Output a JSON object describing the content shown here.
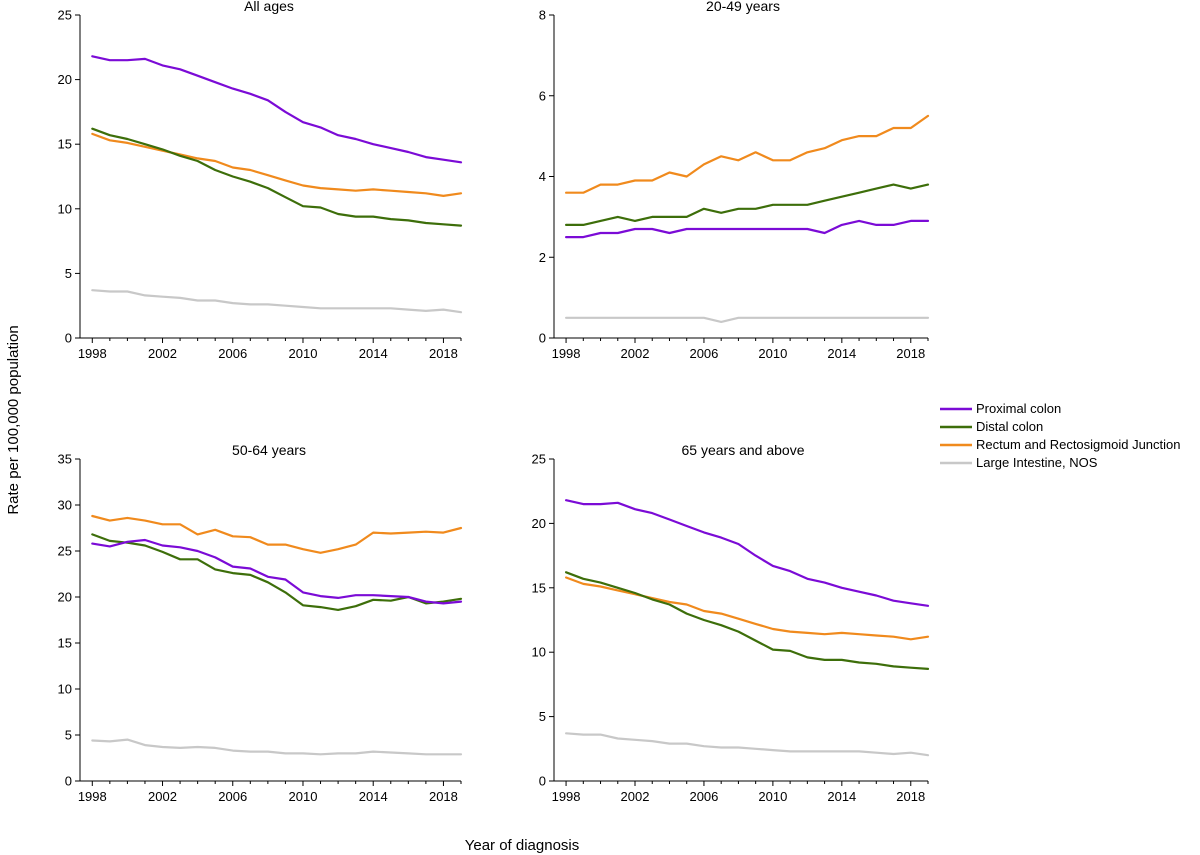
{
  "figure": {
    "ylabel": "Rate per 100,000 population",
    "xlabel": "Year of diagnosis"
  },
  "legend": {
    "placement": "right",
    "items": [
      {
        "name": "Proximal colon",
        "color": "#7B0BD6"
      },
      {
        "name": "Distal colon",
        "color": "#3D6E0A"
      },
      {
        "name": "Rectum and Rectosigmoid Junction",
        "color": "#F08A1D"
      },
      {
        "name": "Large Intestine, NOS",
        "color": "#C8C8C8"
      }
    ]
  },
  "chart_data": [
    {
      "type": "line",
      "title": "All ages",
      "x": [
        1998,
        1999,
        2000,
        2001,
        2002,
        2003,
        2004,
        2005,
        2006,
        2007,
        2008,
        2009,
        2010,
        2011,
        2012,
        2013,
        2014,
        2015,
        2016,
        2017,
        2018,
        2019
      ],
      "xticks": [
        "1998",
        "2002",
        "2006",
        "2010",
        "2014",
        "2018"
      ],
      "ylim": [
        0,
        25
      ],
      "yticks": [
        "0",
        "5",
        "10",
        "15",
        "20",
        "25"
      ],
      "series": [
        {
          "name": "Proximal colon",
          "values": [
            21.8,
            21.5,
            21.5,
            21.6,
            21.1,
            20.8,
            20.3,
            19.8,
            19.3,
            18.9,
            18.4,
            17.5,
            16.7,
            16.3,
            15.7,
            15.4,
            15.0,
            14.7,
            14.4,
            14.0,
            13.8,
            13.6
          ]
        },
        {
          "name": "Distal colon",
          "values": [
            16.2,
            15.7,
            15.4,
            15.0,
            14.6,
            14.1,
            13.7,
            13.0,
            12.5,
            12.1,
            11.6,
            10.9,
            10.2,
            10.1,
            9.6,
            9.4,
            9.4,
            9.2,
            9.1,
            8.9,
            8.8,
            8.7
          ]
        },
        {
          "name": "Rectum and Rectosigmoid Junction",
          "values": [
            15.8,
            15.3,
            15.1,
            14.8,
            14.5,
            14.2,
            13.9,
            13.7,
            13.2,
            13.0,
            12.6,
            12.2,
            11.8,
            11.6,
            11.5,
            11.4,
            11.5,
            11.4,
            11.3,
            11.2,
            11.0,
            11.2
          ]
        },
        {
          "name": "Large Intestine, NOS",
          "values": [
            3.7,
            3.6,
            3.6,
            3.3,
            3.2,
            3.1,
            2.9,
            2.9,
            2.7,
            2.6,
            2.6,
            2.5,
            2.4,
            2.3,
            2.3,
            2.3,
            2.3,
            2.3,
            2.2,
            2.1,
            2.2,
            2.0
          ]
        }
      ]
    },
    {
      "type": "line",
      "title": "20-49 years",
      "x": [
        1998,
        1999,
        2000,
        2001,
        2002,
        2003,
        2004,
        2005,
        2006,
        2007,
        2008,
        2009,
        2010,
        2011,
        2012,
        2013,
        2014,
        2015,
        2016,
        2017,
        2018,
        2019
      ],
      "xticks": [
        "1998",
        "2002",
        "2006",
        "2010",
        "2014",
        "2018"
      ],
      "ylim": [
        0,
        8
      ],
      "yticks": [
        "0",
        "2",
        "4",
        "6",
        "8"
      ],
      "series": [
        {
          "name": "Proximal colon",
          "values": [
            2.5,
            2.5,
            2.6,
            2.6,
            2.7,
            2.7,
            2.6,
            2.7,
            2.7,
            2.7,
            2.7,
            2.7,
            2.7,
            2.7,
            2.7,
            2.6,
            2.8,
            2.9,
            2.8,
            2.8,
            2.9,
            2.9
          ]
        },
        {
          "name": "Distal colon",
          "values": [
            2.8,
            2.8,
            2.9,
            3.0,
            2.9,
            3.0,
            3.0,
            3.0,
            3.2,
            3.1,
            3.2,
            3.2,
            3.3,
            3.3,
            3.3,
            3.4,
            3.5,
            3.6,
            3.7,
            3.8,
            3.7,
            3.8
          ]
        },
        {
          "name": "Rectum and Rectosigmoid Junction",
          "values": [
            3.6,
            3.6,
            3.8,
            3.8,
            3.9,
            3.9,
            4.1,
            4.0,
            4.3,
            4.5,
            4.4,
            4.6,
            4.4,
            4.4,
            4.6,
            4.7,
            4.9,
            5.0,
            5.0,
            5.2,
            5.2,
            5.5
          ]
        },
        {
          "name": "Large Intestine, NOS",
          "values": [
            0.5,
            0.5,
            0.5,
            0.5,
            0.5,
            0.5,
            0.5,
            0.5,
            0.5,
            0.4,
            0.5,
            0.5,
            0.5,
            0.5,
            0.5,
            0.5,
            0.5,
            0.5,
            0.5,
            0.5,
            0.5,
            0.5
          ]
        }
      ]
    },
    {
      "type": "line",
      "title": "50-64 years",
      "x": [
        1998,
        1999,
        2000,
        2001,
        2002,
        2003,
        2004,
        2005,
        2006,
        2007,
        2008,
        2009,
        2010,
        2011,
        2012,
        2013,
        2014,
        2015,
        2016,
        2017,
        2018,
        2019
      ],
      "xticks": [
        "1998",
        "2002",
        "2006",
        "2010",
        "2014",
        "2018"
      ],
      "ylim": [
        0,
        35
      ],
      "yticks": [
        "0",
        "5",
        "10",
        "15",
        "20",
        "25",
        "30",
        "35"
      ],
      "series": [
        {
          "name": "Proximal colon",
          "values": [
            25.8,
            25.5,
            26.0,
            26.2,
            25.6,
            25.4,
            25.0,
            24.3,
            23.3,
            23.1,
            22.2,
            21.9,
            20.5,
            20.1,
            19.9,
            20.2,
            20.2,
            20.1,
            20.0,
            19.5,
            19.3,
            19.5
          ]
        },
        {
          "name": "Distal colon",
          "values": [
            26.8,
            26.1,
            25.9,
            25.6,
            24.9,
            24.1,
            24.1,
            23.0,
            22.6,
            22.4,
            21.6,
            20.5,
            19.1,
            18.9,
            18.6,
            19.0,
            19.7,
            19.6,
            20.0,
            19.3,
            19.5,
            19.8
          ]
        },
        {
          "name": "Rectum and Rectosigmoid Junction",
          "values": [
            28.8,
            28.3,
            28.6,
            28.3,
            27.9,
            27.9,
            26.8,
            27.3,
            26.6,
            26.5,
            25.7,
            25.7,
            25.2,
            24.8,
            25.2,
            25.7,
            27.0,
            26.9,
            27.0,
            27.1,
            27.0,
            27.5
          ]
        },
        {
          "name": "Large Intestine, NOS",
          "values": [
            4.4,
            4.3,
            4.5,
            3.9,
            3.7,
            3.6,
            3.7,
            3.6,
            3.3,
            3.2,
            3.2,
            3.0,
            3.0,
            2.9,
            3.0,
            3.0,
            3.2,
            3.1,
            3.0,
            2.9,
            2.9,
            2.9
          ]
        }
      ]
    },
    {
      "type": "line",
      "title": "65 years and above",
      "x": [
        1998,
        1999,
        2000,
        2001,
        2002,
        2003,
        2004,
        2005,
        2006,
        2007,
        2008,
        2009,
        2010,
        2011,
        2012,
        2013,
        2014,
        2015,
        2016,
        2017,
        2018,
        2019
      ],
      "xticks": [
        "1998",
        "2002",
        "2006",
        "2010",
        "2014",
        "2018"
      ],
      "ylim": [
        0,
        25
      ],
      "yticks": [
        "0",
        "5",
        "10",
        "15",
        "20",
        "25"
      ],
      "series": [
        {
          "name": "Proximal colon",
          "values": [
            21.8,
            21.5,
            21.5,
            21.6,
            21.1,
            20.8,
            20.3,
            19.8,
            19.3,
            18.9,
            18.4,
            17.5,
            16.7,
            16.3,
            15.7,
            15.4,
            15.0,
            14.7,
            14.4,
            14.0,
            13.8,
            13.6
          ]
        },
        {
          "name": "Distal colon",
          "values": [
            16.2,
            15.7,
            15.4,
            15.0,
            14.6,
            14.1,
            13.7,
            13.0,
            12.5,
            12.1,
            11.6,
            10.9,
            10.2,
            10.1,
            9.6,
            9.4,
            9.4,
            9.2,
            9.1,
            8.9,
            8.8,
            8.7
          ]
        },
        {
          "name": "Rectum and Rectosigmoid Junction",
          "values": [
            15.8,
            15.3,
            15.1,
            14.8,
            14.5,
            14.2,
            13.9,
            13.7,
            13.2,
            13.0,
            12.6,
            12.2,
            11.8,
            11.6,
            11.5,
            11.4,
            11.5,
            11.4,
            11.3,
            11.2,
            11.0,
            11.2
          ]
        },
        {
          "name": "Large Intestine, NOS",
          "values": [
            3.7,
            3.6,
            3.6,
            3.3,
            3.2,
            3.1,
            2.9,
            2.9,
            2.7,
            2.6,
            2.6,
            2.5,
            2.4,
            2.3,
            2.3,
            2.3,
            2.3,
            2.3,
            2.2,
            2.1,
            2.2,
            2.0
          ]
        }
      ]
    }
  ]
}
